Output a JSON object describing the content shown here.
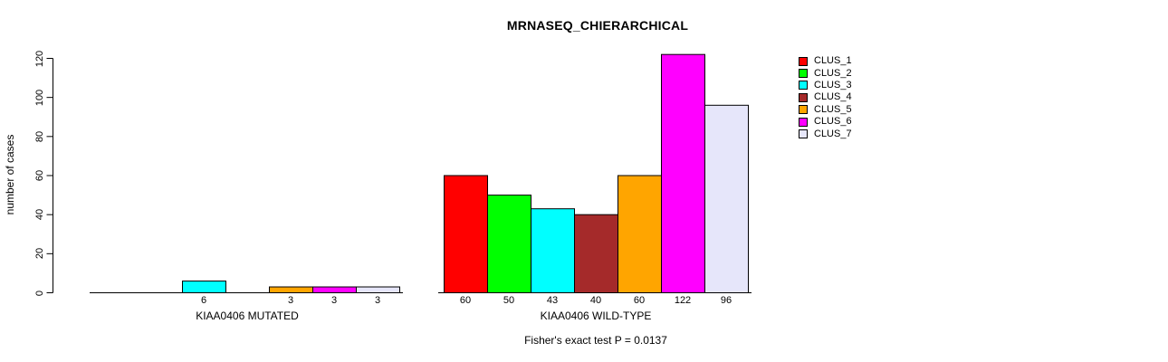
{
  "chart_data": {
    "type": "bar",
    "title": "MRNASEQ_CHIERARCHICAL",
    "ylabel": "number of cases",
    "ylim": [
      0,
      120
    ],
    "yticks": [
      0,
      20,
      40,
      60,
      80,
      100,
      120
    ],
    "grid": false,
    "legend_position": "right-outside",
    "footnote": "Fisher's exact test P = 0.0137",
    "clusters": [
      {
        "name": "CLUS_1",
        "color": "#FF0000"
      },
      {
        "name": "CLUS_2",
        "color": "#00FF00"
      },
      {
        "name": "CLUS_3",
        "color": "#00FFFF"
      },
      {
        "name": "CLUS_4",
        "color": "#A52A2A"
      },
      {
        "name": "CLUS_5",
        "color": "#FFA500"
      },
      {
        "name": "CLUS_6",
        "color": "#FF00FF"
      },
      {
        "name": "CLUS_7",
        "color": "#E6E6FA"
      }
    ],
    "groups": [
      {
        "label": "KIAA0406 MUTATED",
        "values": [
          0,
          0,
          6,
          0,
          3,
          3,
          3
        ]
      },
      {
        "label": "KIAA0406 WILD-TYPE",
        "values": [
          60,
          50,
          43,
          40,
          60,
          122,
          96
        ]
      }
    ],
    "axis_color": "#000000",
    "bar_border_color": "#000000"
  }
}
